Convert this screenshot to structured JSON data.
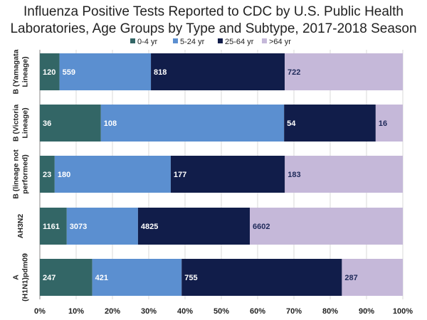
{
  "chart_data": {
    "type": "bar",
    "stacked": "percent",
    "orientation": "horizontal",
    "title_lines": [
      "Influenza Positive Tests Reported to CDC by U.S. Public Health",
      "Laboratories, Age Groups by Type and Subtype, 2017-2018 Season"
    ],
    "categories": [
      {
        "lines": [
          "B (Yamagata",
          "Lineage)"
        ]
      },
      {
        "lines": [
          "B (Victoria",
          "Lineage)"
        ]
      },
      {
        "lines": [
          "B (lineage not",
          "performed)"
        ]
      },
      {
        "lines": [
          "AH3N2"
        ]
      },
      {
        "lines": [
          "A",
          "(H1N1)pdm09"
        ]
      }
    ],
    "series": [
      {
        "name": "0-4 yr",
        "color": "#336666",
        "label_color": "#ffffff",
        "values": [
          120,
          36,
          23,
          1161,
          247
        ]
      },
      {
        "name": "5-24 yr",
        "color": "#5b8fd0",
        "label_color": "#ffffff",
        "values": [
          559,
          108,
          180,
          3073,
          421
        ]
      },
      {
        "name": "25-64 yr",
        "color": "#111d4a",
        "label_color": "#ffffff",
        "values": [
          818,
          54,
          177,
          4825,
          755
        ]
      },
      {
        "name": ">64 yr",
        "color": "#c5b8d9",
        "label_color": "#1f2a5a",
        "values": [
          722,
          16,
          183,
          6602,
          287
        ]
      }
    ],
    "x_ticks": [
      "0%",
      "10%",
      "20%",
      "30%",
      "40%",
      "50%",
      "60%",
      "70%",
      "80%",
      "90%",
      "100%"
    ],
    "xlim": [
      0,
      100
    ],
    "legend": "top-center",
    "grid": true
  }
}
